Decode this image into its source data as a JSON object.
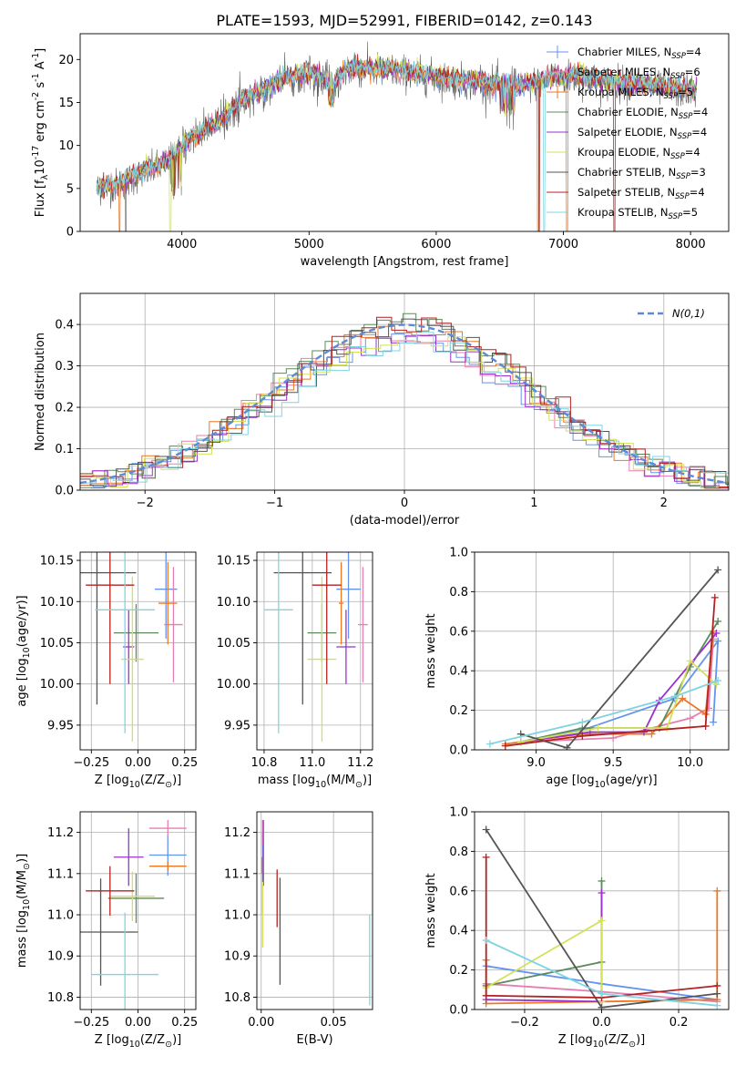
{
  "chart_data": [
    {
      "id": "spectrum",
      "type": "line",
      "title": "PLATE=1593, MJD=52991, FIBERID=0142, z=0.143",
      "xlabel": "wavelength [Angstrom, rest frame]",
      "ylabel": "Flux [f_λ10^-17 erg cm^-2 s^-1 A^-1]",
      "xlim": [
        3200,
        8300
      ],
      "ylim": [
        0,
        23
      ],
      "xticks": [
        "4000",
        "5000",
        "6000",
        "7000",
        "8000"
      ],
      "yticks": [
        "0",
        "5",
        "10",
        "15",
        "20"
      ],
      "grid": false,
      "legend": "right",
      "envelope": {
        "x": [
          3330,
          3500,
          3700,
          3900,
          4000,
          4100,
          4200,
          4300,
          4400,
          4500,
          4600,
          4700,
          4800,
          4900,
          5000,
          5100,
          5200,
          5300,
          5500,
          5700,
          5900,
          6100,
          6300,
          6500,
          6700,
          6900,
          7100,
          7300,
          7500,
          7700,
          7900,
          8050
        ],
        "y": [
          5.2,
          5.6,
          7.0,
          8.2,
          10.0,
          11.2,
          12.0,
          12.8,
          14.3,
          15.6,
          16.2,
          17.0,
          17.8,
          18.2,
          18.6,
          17.8,
          17.2,
          19.0,
          19.0,
          18.8,
          18.3,
          17.8,
          17.5,
          17.2,
          17.0,
          18.0,
          18.2,
          17.5,
          17.4,
          17.0,
          16.6,
          16.6
        ]
      },
      "series": [
        {
          "name": "Chabrier MILES, N_SSP=4",
          "color": "#6495ed"
        },
        {
          "name": "Salpeter MILES, N_SSP=6",
          "color": "#e57fb2"
        },
        {
          "name": "Kroupa MILES, N_SSP=5",
          "color": "#ee7722"
        },
        {
          "name": "Chabrier ELODIE, N_SSP=4",
          "color": "#5c8a5c"
        },
        {
          "name": "Salpeter ELODIE, N_SSP=4",
          "color": "#9932cc"
        },
        {
          "name": "Kroupa ELODIE, N_SSP=4",
          "color": "#d4e157"
        },
        {
          "name": "Chabrier STELIB, N_SSP=3",
          "color": "#555555"
        },
        {
          "name": "Salpeter STELIB, N_SSP=4",
          "color": "#b22222"
        },
        {
          "name": "Kroupa STELIB, N_SSP=5",
          "color": "#7fd4e0"
        }
      ]
    },
    {
      "id": "residuals",
      "type": "bar",
      "xlabel": "(data-model)/error",
      "ylabel": "Normed distribution",
      "xlim": [
        -2.5,
        2.5
      ],
      "ylim": [
        0,
        0.475
      ],
      "xticks": [
        "−2",
        "−1",
        "0",
        "1",
        "2"
      ],
      "yticks": [
        "0.0",
        "0.1",
        "0.2",
        "0.3",
        "0.4"
      ],
      "grid": true,
      "legend": "top-right",
      "normal_label": "N(0,1)"
    },
    {
      "id": "age_vs_Z",
      "type": "scatter",
      "xlabel": "Z [log10(Z/Z⊙)]",
      "ylabel": "age  [log10(age/yr)]",
      "xlim": [
        -0.31,
        0.31
      ],
      "ylim": [
        9.92,
        10.16
      ],
      "xticks": [
        "−0.25",
        "0.00",
        "0.25"
      ],
      "yticks": [
        "9.95",
        "10.00",
        "10.05",
        "10.10",
        "10.15"
      ],
      "points": [
        {
          "x": 0.15,
          "y": 10.115,
          "xerr": 0.06,
          "yerr": 0.06,
          "color": "#6495ed"
        },
        {
          "x": 0.19,
          "y": 10.072,
          "xerr": 0.05,
          "yerr": 0.07,
          "color": "#e57fb2"
        },
        {
          "x": 0.16,
          "y": 10.098,
          "xerr": 0.05,
          "yerr": 0.05,
          "color": "#ee7722"
        },
        {
          "x": -0.01,
          "y": 10.062,
          "xerr": 0.12,
          "yerr": 0.035,
          "color": "#5c8a5c"
        },
        {
          "x": -0.05,
          "y": 10.045,
          "xerr": 0.03,
          "yerr": 0.045,
          "color": "#9932cc"
        },
        {
          "x": -0.03,
          "y": 10.03,
          "xerr": 0.06,
          "yerr": 0.1,
          "color": "#d4e157"
        },
        {
          "x": -0.22,
          "y": 10.135,
          "xerr": 0.21,
          "yerr": 0.16,
          "color": "#555555"
        },
        {
          "x": -0.15,
          "y": 10.12,
          "xerr": 0.13,
          "yerr": 0.12,
          "color": "#b22222"
        },
        {
          "x": -0.07,
          "y": 10.09,
          "xerr": 0.16,
          "yerr": 0.15,
          "color": "#7fd4e0"
        }
      ]
    },
    {
      "id": "age_vs_mass",
      "type": "scatter",
      "xlabel": "mass [log10(M/M⊙)]",
      "ylabel": "",
      "xlim": [
        10.77,
        11.25
      ],
      "ylim": [
        9.92,
        10.16
      ],
      "xticks": [
        "10.8",
        "11.0",
        "11.2"
      ],
      "yticks": [
        "9.95",
        "10.00",
        "10.05",
        "10.10",
        "10.15"
      ],
      "points": [
        {
          "x": 11.15,
          "y": 10.115,
          "xerr": 0.05,
          "yerr": 0.06,
          "color": "#6495ed"
        },
        {
          "x": 11.21,
          "y": 10.072,
          "xerr": 0.02,
          "yerr": 0.07,
          "color": "#e57fb2"
        },
        {
          "x": 11.12,
          "y": 10.098,
          "xerr": 0.01,
          "yerr": 0.05,
          "color": "#ee7722"
        },
        {
          "x": 11.04,
          "y": 10.062,
          "xerr": 0.06,
          "yerr": 0.035,
          "color": "#5c8a5c"
        },
        {
          "x": 11.14,
          "y": 10.045,
          "xerr": 0.04,
          "yerr": 0.045,
          "color": "#9932cc"
        },
        {
          "x": 11.04,
          "y": 10.03,
          "xerr": 0.06,
          "yerr": 0.1,
          "color": "#d4e157"
        },
        {
          "x": 10.96,
          "y": 10.135,
          "xerr": 0.12,
          "yerr": 0.16,
          "color": "#555555"
        },
        {
          "x": 11.06,
          "y": 10.12,
          "xerr": 0.06,
          "yerr": 0.12,
          "color": "#b22222"
        },
        {
          "x": 10.86,
          "y": 10.09,
          "xerr": 0.06,
          "yerr": 0.15,
          "color": "#7fd4e0"
        }
      ]
    },
    {
      "id": "weight_vs_age",
      "type": "line",
      "xlabel": "age  [log10(age/yr)]",
      "ylabel": "mass weight",
      "xlim": [
        8.6,
        10.25
      ],
      "ylim": [
        0,
        1.0
      ],
      "xticks": [
        "9.0",
        "9.5",
        "10.0"
      ],
      "yticks": [
        "0.0",
        "0.2",
        "0.4",
        "0.6",
        "0.8",
        "1.0"
      ],
      "grid": true,
      "series": [
        {
          "color": "#6495ed",
          "x": [
            8.9,
            9.3,
            9.9,
            10.18,
            10.15
          ],
          "y": [
            0.04,
            0.1,
            0.26,
            0.55,
            0.14
          ]
        },
        {
          "color": "#e57fb2",
          "x": [
            8.9,
            9.5,
            10.0,
            10.12,
            10.15
          ],
          "y": [
            0.04,
            0.06,
            0.16,
            0.21,
            0.56
          ]
        },
        {
          "color": "#ee7722",
          "x": [
            8.8,
            9.3,
            9.75,
            9.95,
            10.1,
            10.15
          ],
          "y": [
            0.03,
            0.08,
            0.08,
            0.26,
            0.18,
            0.6
          ]
        },
        {
          "color": "#5c8a5c",
          "x": [
            8.9,
            9.3,
            9.8,
            10.0,
            10.18
          ],
          "y": [
            0.04,
            0.11,
            0.11,
            0.42,
            0.65
          ]
        },
        {
          "color": "#9932cc",
          "x": [
            8.9,
            9.35,
            9.7,
            9.8,
            10.17
          ],
          "y": [
            0.04,
            0.09,
            0.09,
            0.25,
            0.59
          ]
        },
        {
          "color": "#d4e157",
          "x": [
            8.9,
            9.4,
            9.85,
            10.0,
            10.17
          ],
          "y": [
            0.04,
            0.11,
            0.11,
            0.45,
            0.33
          ]
        },
        {
          "color": "#555555",
          "x": [
            8.9,
            9.2,
            10.18
          ],
          "y": [
            0.08,
            0.01,
            0.91
          ]
        },
        {
          "color": "#b22222",
          "x": [
            8.8,
            9.3,
            10.1,
            10.16
          ],
          "y": [
            0.02,
            0.07,
            0.12,
            0.77
          ]
        },
        {
          "color": "#7fd4e0",
          "x": [
            8.7,
            9.3,
            9.9,
            10.18
          ],
          "y": [
            0.03,
            0.14,
            0.27,
            0.35
          ]
        }
      ]
    },
    {
      "id": "mass_vs_Z",
      "type": "scatter",
      "xlabel": "Z [log10(Z/Z⊙)]",
      "ylabel": "mass [log10(M/M⊙)]",
      "xlim": [
        -0.31,
        0.31
      ],
      "ylim": [
        10.77,
        11.25
      ],
      "xticks": [
        "−0.25",
        "0.00",
        "0.25"
      ],
      "yticks": [
        "10.8",
        "10.9",
        "11.0",
        "11.1",
        "11.2"
      ],
      "points": [
        {
          "x": 0.16,
          "y": 11.145,
          "xerr": 0.1,
          "yerr": 0.05,
          "color": "#6495ed"
        },
        {
          "x": 0.16,
          "y": 11.21,
          "xerr": 0.1,
          "yerr": 0.02,
          "color": "#e57fb2"
        },
        {
          "x": 0.16,
          "y": 11.118,
          "xerr": 0.1,
          "yerr": 0.01,
          "color": "#ee7722"
        },
        {
          "x": -0.01,
          "y": 11.04,
          "xerr": 0.15,
          "yerr": 0.06,
          "color": "#5c8a5c"
        },
        {
          "x": -0.05,
          "y": 11.14,
          "xerr": 0.08,
          "yerr": 0.07,
          "color": "#9932cc"
        },
        {
          "x": -0.03,
          "y": 11.045,
          "xerr": 0.12,
          "yerr": 0.06,
          "color": "#d4e157"
        },
        {
          "x": -0.2,
          "y": 10.958,
          "xerr": 0.2,
          "yerr": 0.13,
          "color": "#555555"
        },
        {
          "x": -0.15,
          "y": 11.058,
          "xerr": 0.13,
          "yerr": 0.06,
          "color": "#b22222"
        },
        {
          "x": -0.07,
          "y": 10.855,
          "xerr": 0.18,
          "yerr": 0.15,
          "color": "#7fd4e0"
        }
      ]
    },
    {
      "id": "mass_vs_ebv",
      "type": "scatter",
      "xlabel": "E(B-V)",
      "ylabel": "",
      "xlim": [
        -0.003,
        0.077
      ],
      "ylim": [
        10.77,
        11.25
      ],
      "xticks": [
        "0.00",
        "0.05"
      ],
      "yticks": [
        "10.8",
        "10.9",
        "11.0",
        "11.1",
        "11.2"
      ],
      "points": [
        {
          "x": 0.001,
          "y": 11.15,
          "xerr": 0.0,
          "yerr": 0.05,
          "color": "#6495ed"
        },
        {
          "x": 0.001,
          "y": 11.2,
          "xerr": 0.0,
          "yerr": 0.03,
          "color": "#e57fb2"
        },
        {
          "x": 0.0005,
          "y": 11.12,
          "xerr": 0.0,
          "yerr": 0.02,
          "color": "#ee7722"
        },
        {
          "x": 0.001,
          "y": 11.05,
          "xerr": 0.0,
          "yerr": 0.05,
          "color": "#5c8a5c"
        },
        {
          "x": 0.0015,
          "y": 11.15,
          "xerr": 0.0,
          "yerr": 0.08,
          "color": "#9932cc"
        },
        {
          "x": 0.001,
          "y": 11.0,
          "xerr": 0.0,
          "yerr": 0.08,
          "color": "#d4e157"
        },
        {
          "x": 0.013,
          "y": 10.96,
          "xerr": 0.0,
          "yerr": 0.13,
          "color": "#555555"
        },
        {
          "x": 0.011,
          "y": 11.04,
          "xerr": 0.0,
          "yerr": 0.07,
          "color": "#b22222"
        },
        {
          "x": 0.075,
          "y": 10.89,
          "xerr": 0.0,
          "yerr": 0.11,
          "color": "#7fd4e0"
        }
      ]
    },
    {
      "id": "weight_vs_Z",
      "type": "line",
      "xlabel": "Z [log10(Z/Z⊙)]",
      "ylabel": "mass weight",
      "xlim": [
        -0.33,
        0.33
      ],
      "ylim": [
        0,
        1.0
      ],
      "xticks": [
        "−0.2",
        "0.0",
        "0.2"
      ],
      "yticks": [
        "0.0",
        "0.2",
        "0.4",
        "0.6",
        "0.8",
        "1.0"
      ],
      "grid": true,
      "series": [
        {
          "color": "#6495ed",
          "x": [
            -0.3,
            0.0,
            0.3
          ],
          "y": [
            0.22,
            0.13,
            0.05
          ]
        },
        {
          "color": "#e57fb2",
          "x": [
            -0.3,
            0.0,
            0.3
          ],
          "y": [
            0.13,
            0.09,
            0.04
          ]
        },
        {
          "color": "#ee7722",
          "x": [
            -0.3,
            -0.3,
            0.0,
            0.3,
            0.3
          ],
          "y": [
            0.25,
            0.03,
            0.04,
            0.05,
            0.6
          ]
        },
        {
          "color": "#5c8a5c",
          "x": [
            -0.3,
            0.0,
            0.0
          ],
          "y": [
            0.12,
            0.24,
            0.65
          ]
        },
        {
          "color": "#9932cc",
          "x": [
            -0.3,
            0.0,
            0.0
          ],
          "y": [
            0.05,
            0.04,
            0.59
          ]
        },
        {
          "color": "#d4e157",
          "x": [
            -0.3,
            0.0,
            0.0
          ],
          "y": [
            0.11,
            0.45,
            0.04
          ]
        },
        {
          "color": "#555555",
          "x": [
            -0.3,
            0.0,
            0.3
          ],
          "y": [
            0.91,
            0.01,
            0.08
          ]
        },
        {
          "color": "#b22222",
          "x": [
            -0.3,
            -0.3,
            0.0,
            0.3
          ],
          "y": [
            0.77,
            0.07,
            0.06,
            0.12
          ]
        },
        {
          "color": "#7fd4e0",
          "x": [
            -0.3,
            0.0,
            0.3
          ],
          "y": [
            0.35,
            0.08,
            0.02
          ]
        }
      ]
    }
  ]
}
